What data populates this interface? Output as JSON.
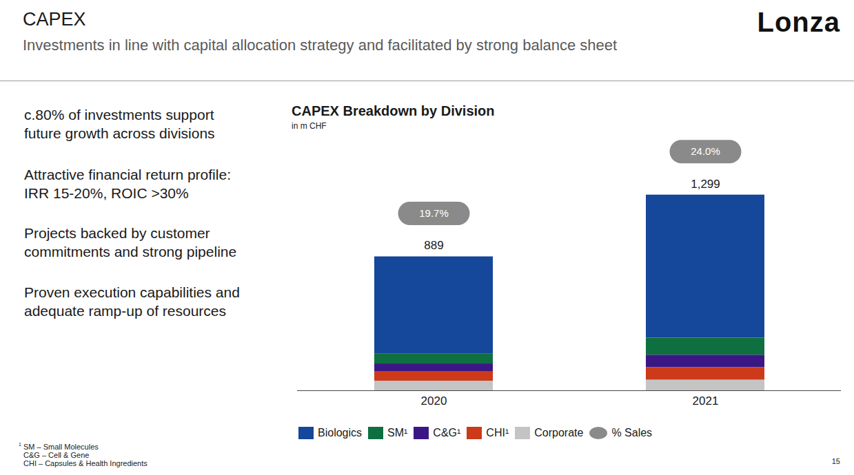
{
  "header": {
    "title": "CAPEX",
    "subtitle": "Investments in line with capital allocation strategy and facilitated by strong balance sheet",
    "logo": "Lonza"
  },
  "bullets": [
    [
      "c.80% of investments support",
      "future growth across divisions"
    ],
    [
      "Attractive financial return profile:",
      "IRR 15-20%, ROIC >30%"
    ],
    [
      "Projects backed by customer",
      "commitments and strong pipeline"
    ],
    [
      "Proven execution capabilities and",
      "adequate ramp-up of resources"
    ]
  ],
  "footnote": {
    "marker": "1",
    "lines": [
      "SM – Small Molecules",
      "C&G – Cell & Gene",
      "CHI – Capsules & Health Ingredients"
    ]
  },
  "page_number": "15",
  "chart_data": {
    "type": "bar",
    "stacked": true,
    "title": "CAPEX Breakdown by Division",
    "subtitle": "in m CHF",
    "categories": [
      "2020",
      "2021"
    ],
    "series": [
      {
        "name": "Biologics",
        "color": "#15479a",
        "values": [
          643,
          949
        ]
      },
      {
        "name": "SM¹",
        "color": "#0e7040",
        "values": [
          68,
          114
        ]
      },
      {
        "name": "C&G¹",
        "color": "#3b1785",
        "values": [
          50,
          83
        ]
      },
      {
        "name": "CHI¹",
        "color": "#cc3a19",
        "values": [
          64,
          83
        ]
      },
      {
        "name": "Corporate",
        "color": "#c4c4c4",
        "values": [
          64,
          70
        ]
      }
    ],
    "totals": {
      "values": [
        889,
        1299
      ],
      "value_labels": [
        "889",
        "1,299"
      ]
    },
    "pct_sales": {
      "name": "% Sales",
      "color": "#8a8a8a",
      "values": [
        19.7,
        24.0
      ],
      "value_labels": [
        "19.7%",
        "24.0%"
      ]
    },
    "ylim": [
      0,
      1700
    ],
    "yticks": [],
    "grid": false,
    "tick_labels": "x",
    "legend": "bottom",
    "data_labels": false
  }
}
